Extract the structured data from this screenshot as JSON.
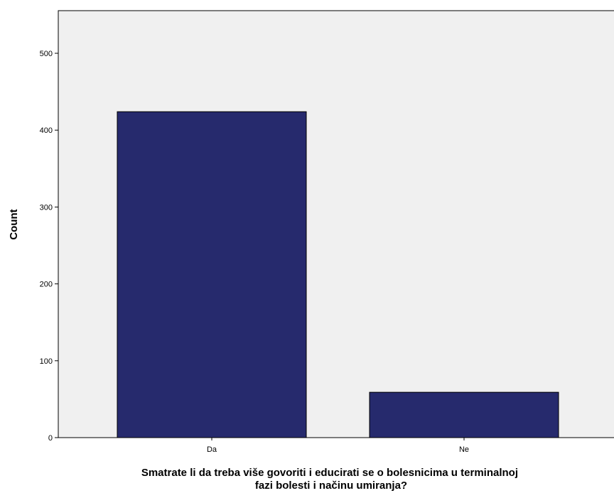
{
  "chart_data": {
    "type": "bar",
    "categories": [
      "Da",
      "Ne"
    ],
    "values": [
      424,
      59
    ],
    "ylabel": "Count",
    "xlabel_lines": [
      "Smatrate li da treba više govoriti i educirati se o bolesnicima u terminalnoj",
      "fazi bolesti i načinu umiranja?"
    ],
    "ylim": [
      0,
      550
    ],
    "yticks": [
      0,
      100,
      200,
      300,
      400,
      500
    ],
    "grid": false,
    "colors": {
      "plot_background": "#f0f0f0",
      "bar_fill": "#262a6d",
      "bar_stroke": "#000000",
      "axis": "#000000"
    }
  }
}
